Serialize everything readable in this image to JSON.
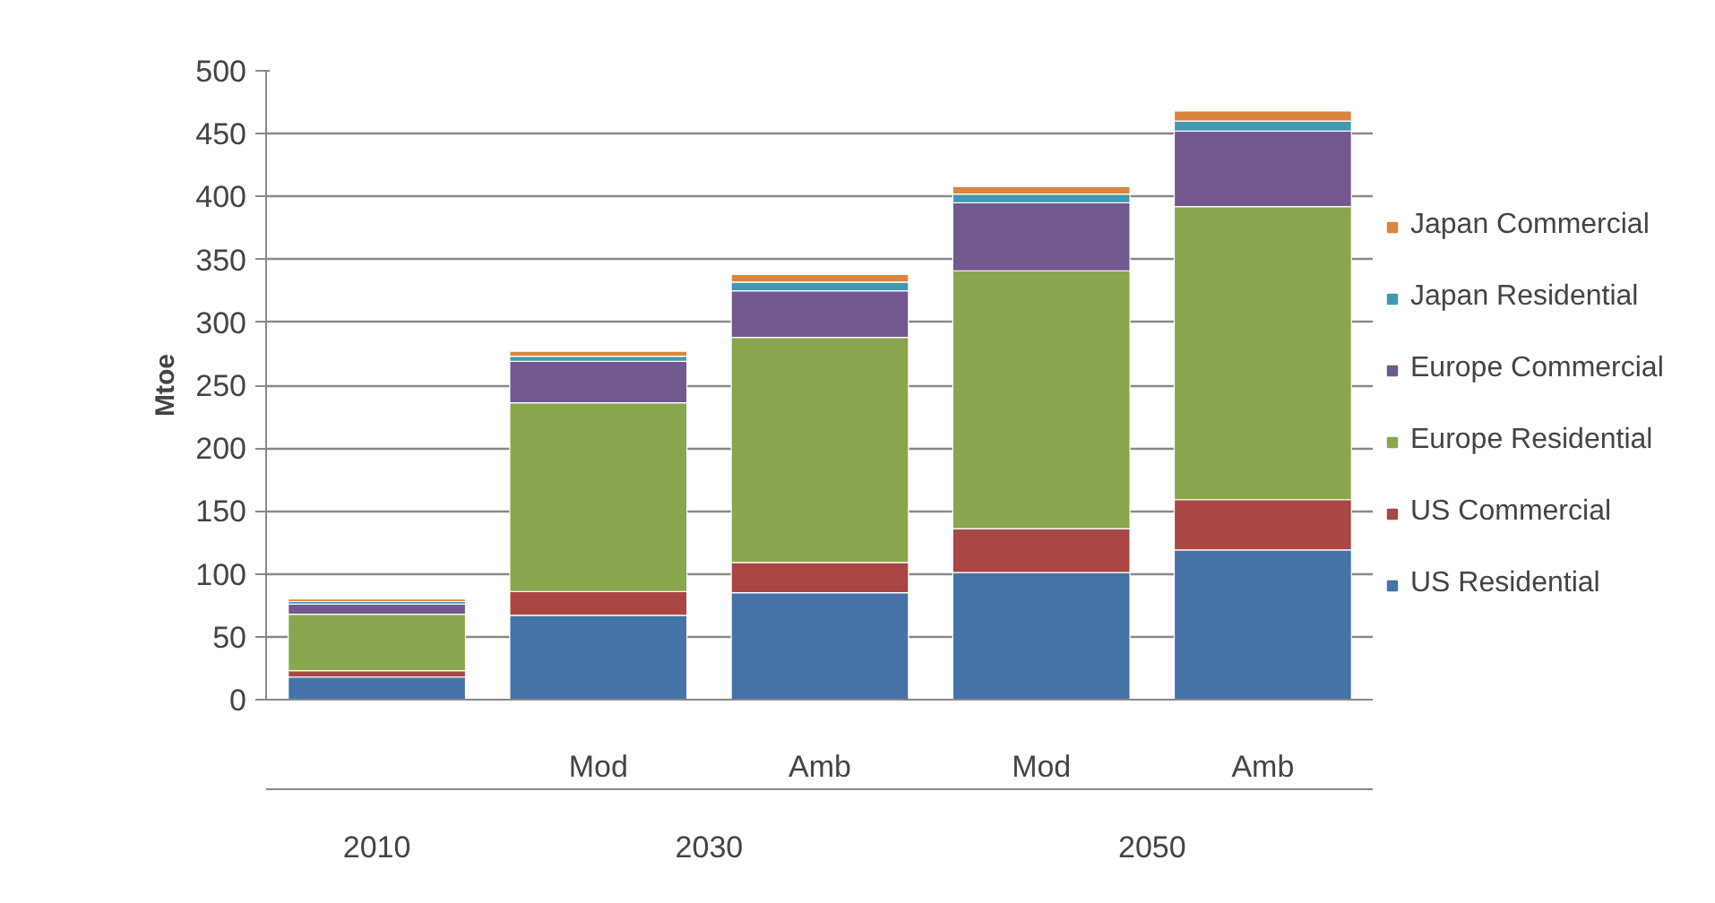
{
  "chart_data": {
    "type": "bar",
    "stacked": true,
    "ylabel": "Mtoe",
    "categories": [
      null,
      "Mod",
      "Amb",
      "Mod",
      "Amb"
    ],
    "annotations": [
      "2010",
      "2030",
      "2050"
    ],
    "series": [
      {
        "name": "US Residential",
        "color": "#4572a7",
        "values": [
          18,
          67,
          85,
          101,
          119
        ]
      },
      {
        "name": "US Commercial",
        "color": "#aa4643",
        "values": [
          5,
          19,
          24,
          35,
          40
        ]
      },
      {
        "name": "Europe Residential",
        "color": "#89a54e",
        "values": [
          45,
          150,
          179,
          205,
          233
        ]
      },
      {
        "name": "Europe Commercial",
        "color": "#71588f",
        "values": [
          8,
          33,
          37,
          54,
          60
        ]
      },
      {
        "name": "Japan Residential",
        "color": "#4198af",
        "values": [
          2,
          4,
          7,
          7,
          8
        ]
      },
      {
        "name": "Japan Commercial",
        "color": "#db843d",
        "values": [
          2,
          4,
          6,
          6,
          8
        ]
      }
    ],
    "ylim": [
      0,
      500
    ],
    "yticks": [
      0,
      50,
      100,
      150,
      200,
      250,
      300,
      350,
      400,
      450,
      500
    ],
    "grid": "y",
    "legend": "right"
  }
}
